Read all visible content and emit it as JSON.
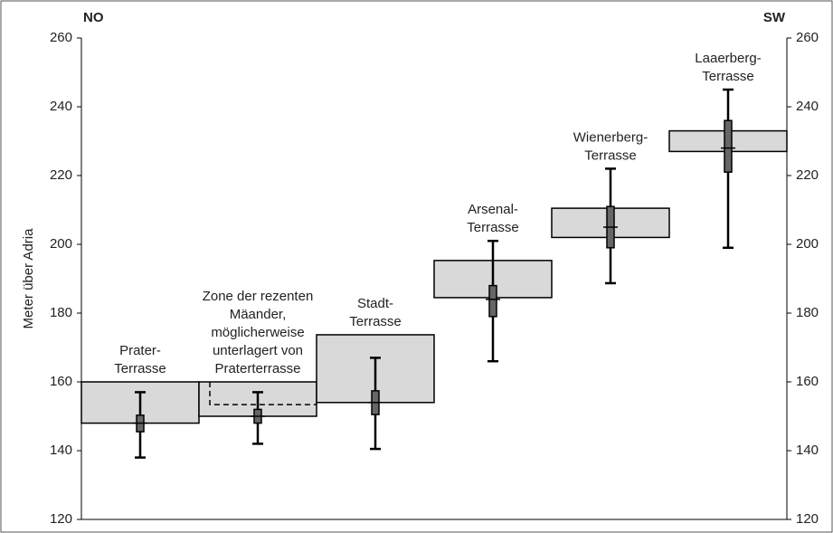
{
  "chart_data": {
    "type": "range-box",
    "y_label": "Meter über Adria",
    "left_label": "NO",
    "right_label": "SW",
    "ylim": [
      120,
      260
    ],
    "yticks": [
      120,
      140,
      160,
      180,
      200,
      220,
      240,
      260
    ],
    "categories": [
      [
        "Prater-",
        "Terrasse"
      ],
      [
        "Zone der rezenten",
        "Mäander,",
        "möglicherweise",
        "unterlagert von",
        "Praterterrasse"
      ],
      [
        "Stadt-",
        "Terrasse"
      ],
      [
        "Arsenal-",
        "Terrasse"
      ],
      [
        "Wienerberg-",
        "Terrasse"
      ],
      [
        "Laaerberg-",
        "Terrasse"
      ]
    ],
    "range_low": [
      148,
      150,
      154,
      184.5,
      202,
      227
    ],
    "range_high": [
      160,
      160,
      173.7,
      195.3,
      210.5,
      233
    ],
    "dashed_line": [
      null,
      153.4,
      null,
      null,
      null,
      null
    ],
    "whisker_low": [
      138,
      142,
      140.5,
      166,
      188.7,
      199
    ],
    "box_low": [
      145.5,
      148,
      150.5,
      179,
      199,
      221
    ],
    "median": [
      148,
      150,
      154,
      184,
      205,
      228
    ],
    "box_high": [
      150.3,
      152,
      157.4,
      188,
      211,
      236
    ],
    "whisker_high": [
      157,
      157,
      167,
      201,
      222,
      245
    ],
    "range_color": "#d9d9d9",
    "box_color": "#666666"
  }
}
